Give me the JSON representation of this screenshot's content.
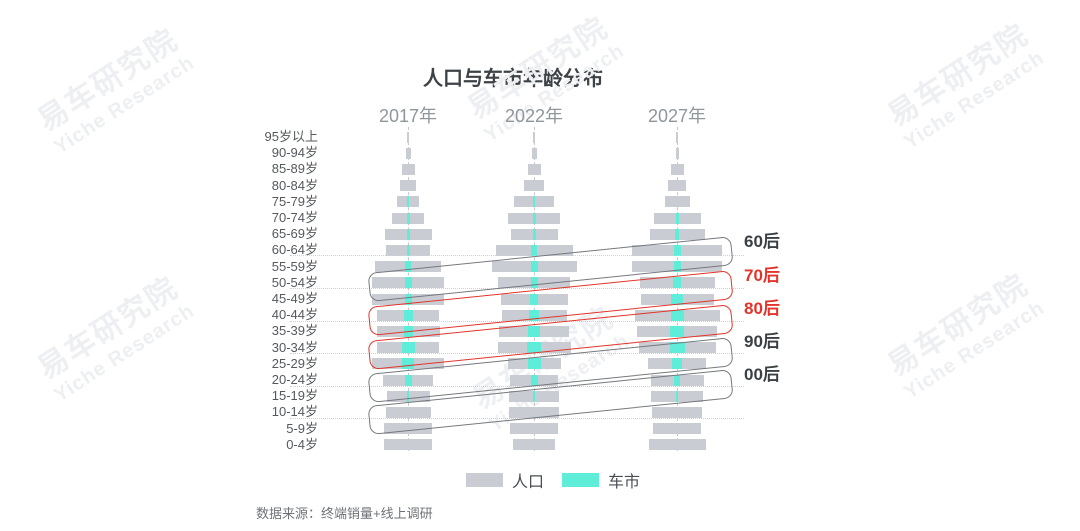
{
  "title": "人口与车市年龄分布",
  "source": "数据来源：终端销量+线上调研",
  "watermark": {
    "line1": "易车研究院",
    "line2": "Yiche Research"
  },
  "legend": [
    {
      "label": "人口",
      "color": "#c9cdd3"
    },
    {
      "label": "车市",
      "color": "#5dedd8"
    }
  ],
  "colors": {
    "population_bar": "#c9cdd3",
    "car_market_bar": "#5dedd8",
    "band_gray_outline": "#75797e",
    "band_red_outline": "#e2342a",
    "band_dark_label": "#3b4045",
    "band_red_label": "#e2342a",
    "title_text": "#3d4247",
    "year_text": "#8f969c",
    "age_text": "#55595e",
    "source_text": "#6e7277",
    "watermark_text": "#edeff2"
  },
  "chart_data": {
    "type": "bar",
    "variant": "population-pyramid-triptych",
    "title": "人口与车市年龄分布",
    "note": "Three mirrored age pyramids (2017/2022/2027); gray = population, teal = car market. No numeric axis shown; values are relative bar widths in px read from the image.",
    "xlabel": "",
    "ylabel": "",
    "grid": "dotted horizontal separators every two age rows",
    "legend_position": "bottom-center",
    "age_groups": [
      "95岁以上",
      "90-94岁",
      "85-89岁",
      "80-84岁",
      "75-79岁",
      "70-74岁",
      "65-69岁",
      "60-64岁",
      "55-59岁",
      "50-54岁",
      "45-49岁",
      "40-44岁",
      "35-39岁",
      "30-34岁",
      "25-29岁",
      "20-24岁",
      "15-19岁",
      "10-14岁",
      "5-9岁",
      "0-4岁"
    ],
    "series": [
      {
        "year": "2017年",
        "population": [
          2,
          5,
          13,
          16,
          22,
          32,
          47,
          44,
          66,
          72,
          72,
          62,
          63,
          62,
          72,
          50,
          43,
          45,
          48,
          48
        ],
        "car_market": [
          0,
          0,
          0,
          0,
          2,
          3,
          3,
          3,
          6,
          7,
          7,
          9,
          9,
          13,
          12,
          7,
          2,
          0,
          0,
          0
        ]
      },
      {
        "year": "2022年",
        "population": [
          2,
          5,
          13,
          20,
          40,
          52,
          47,
          77,
          85,
          72,
          67,
          65,
          70,
          73,
          53,
          48,
          50,
          50,
          48,
          42
        ],
        "car_market": [
          0,
          0,
          0,
          0,
          2,
          3,
          3,
          6,
          7,
          7,
          8,
          10,
          12,
          14,
          13,
          7,
          2,
          0,
          0,
          0
        ]
      },
      {
        "year": "2027年",
        "population": [
          2,
          3,
          13,
          18,
          25,
          47,
          55,
          90,
          90,
          75,
          73,
          85,
          80,
          77,
          58,
          53,
          52,
          50,
          48,
          57
        ],
        "car_market": [
          0,
          0,
          0,
          0,
          0,
          3,
          4,
          7,
          7,
          8,
          12,
          13,
          14,
          15,
          10,
          6,
          2,
          0,
          0,
          0
        ]
      }
    ],
    "generation_bands": [
      {
        "label": "60后",
        "outline": "#75797e",
        "label_color": "#3b4045"
      },
      {
        "label": "70后",
        "outline": "#e2342a",
        "label_color": "#e2342a"
      },
      {
        "label": "80后",
        "outline": "#e2342a",
        "label_color": "#e2342a"
      },
      {
        "label": "90后",
        "outline": "#75797e",
        "label_color": "#3b4045"
      },
      {
        "label": "00后",
        "outline": "#75797e",
        "label_color": "#3b4045"
      }
    ]
  }
}
